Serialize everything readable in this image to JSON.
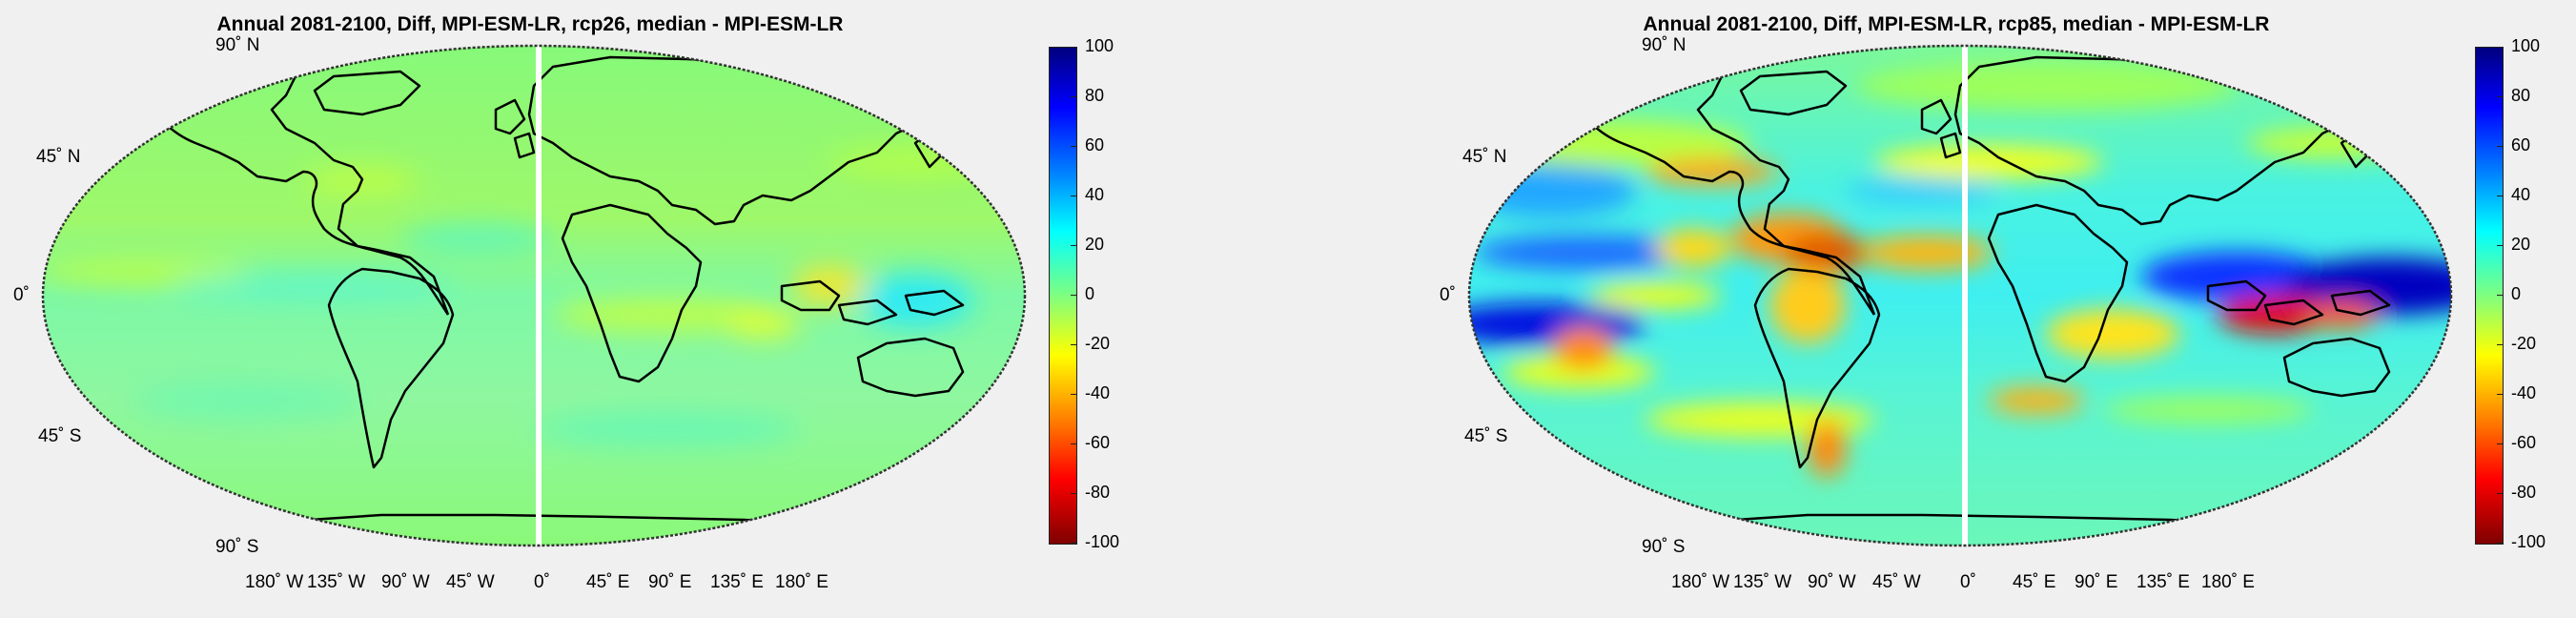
{
  "panels": [
    {
      "title": "Annual 2081-2100, Diff, MPI-ESM-LR, rcp26, median - MPI-ESM-LR",
      "lat_labels": [
        "90˚ N",
        "45˚ N",
        "0˚",
        "45˚ S",
        "90˚ S"
      ],
      "lon_labels": [
        "180˚ W",
        "135˚ W",
        "90˚ W",
        "45˚ W",
        "0˚",
        "45˚ E",
        "90˚ E",
        "135˚ E",
        "180˚ E"
      ],
      "colorbar": {
        "ticks": [
          "100",
          "80",
          "60",
          "40",
          "20",
          "0",
          "-20",
          "-40",
          "-60",
          "-80",
          "-100"
        ],
        "min": -100,
        "max": 100,
        "colormap": "jet"
      }
    },
    {
      "title": "Annual 2081-2100, Diff, MPI-ESM-LR, rcp85, median - MPI-ESM-LR",
      "lat_labels": [
        "90˚ N",
        "45˚ N",
        "0˚",
        "45˚ S",
        "90˚ S"
      ],
      "lon_labels": [
        "180˚ W",
        "135˚ W",
        "90˚ W",
        "45˚ W",
        "0˚",
        "45˚ E",
        "90˚ E",
        "135˚ E",
        "180˚ E"
      ],
      "colorbar": {
        "ticks": [
          "100",
          "80",
          "60",
          "40",
          "20",
          "0",
          "-20",
          "-40",
          "-60",
          "-80",
          "-100"
        ],
        "min": -100,
        "max": 100,
        "colormap": "jet"
      }
    }
  ],
  "projection": "Robinson",
  "colors": {
    "background": "#f0f0f0",
    "coastline": "#000000",
    "field_base": "#7fff7f"
  }
}
